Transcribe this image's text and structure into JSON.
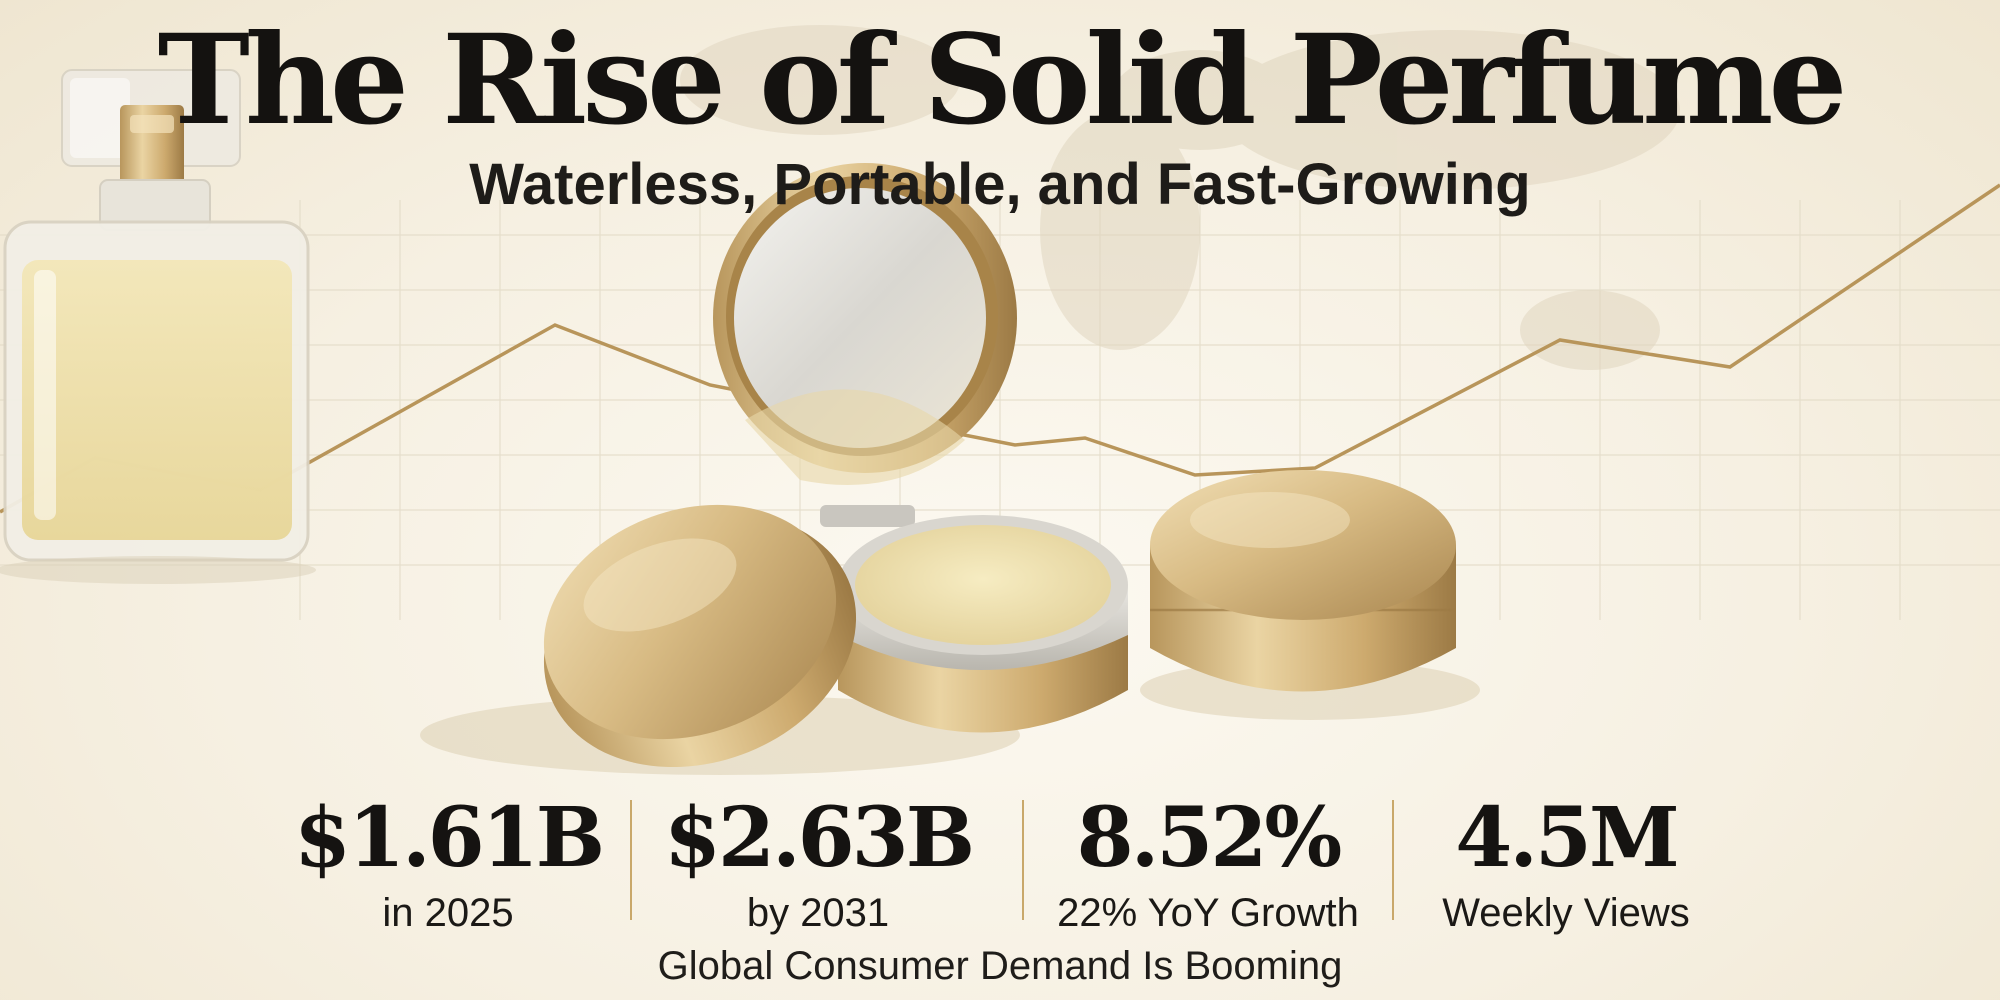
{
  "header": {
    "title": "The Rise of Solid Perfume",
    "subtitle": "Waterless, Portable, and Fast-Growing"
  },
  "stats": [
    {
      "value": "$1.61B",
      "label": "in 2025"
    },
    {
      "value": "$2.63B",
      "label": "by 2031"
    },
    {
      "value": "8.52%",
      "label": "22% YoY Growth"
    },
    {
      "value": "4.5M",
      "label": "Weekly Views"
    }
  ],
  "footer": {
    "tagline": "Global Consumer Demand Is Booming"
  },
  "colors": {
    "background": "#f6f1e4",
    "gold_accent": "#b8955a",
    "text": "#141210"
  }
}
